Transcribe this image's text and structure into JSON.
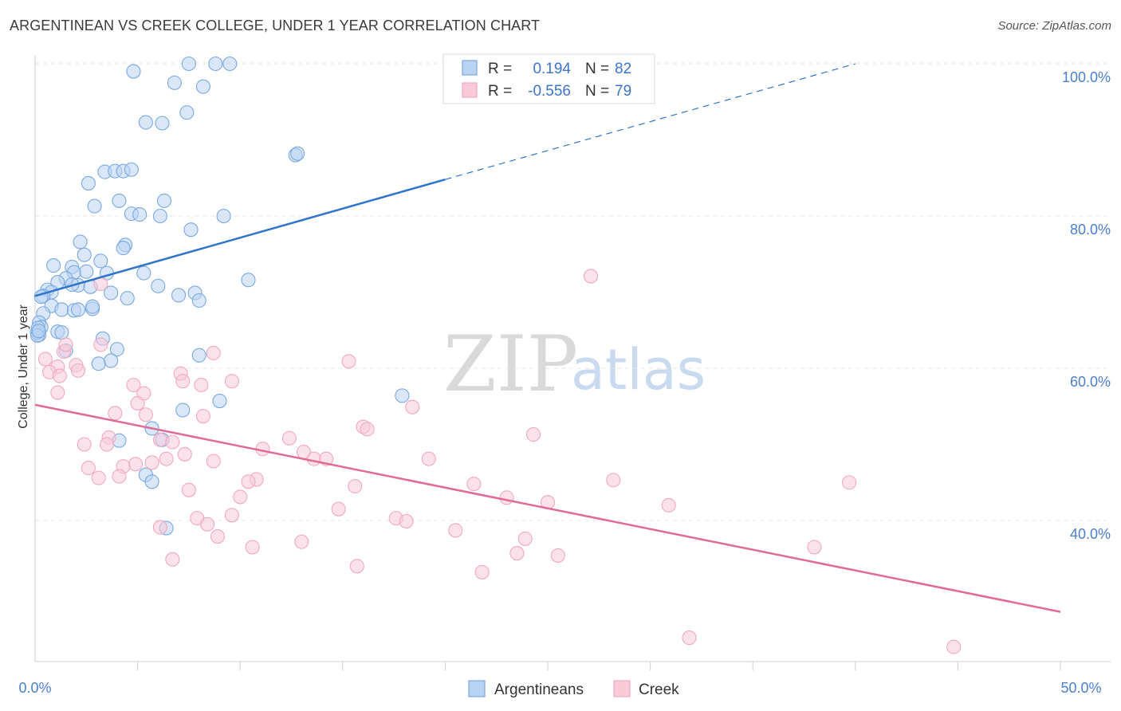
{
  "chart_data": {
    "type": "scatter",
    "title": "ARGENTINEAN VS CREEK COLLEGE, UNDER 1 YEAR CORRELATION CHART",
    "source": "Source: ZipAtlas.com",
    "xlabel": "",
    "ylabel": "College, Under 1 year",
    "xlim": [
      0,
      50
    ],
    "ylim": [
      20,
      102
    ],
    "x_tick_labels": [
      "0.0%",
      "50.0%"
    ],
    "y_ticks": [
      40,
      60,
      80,
      100
    ],
    "y_tick_labels": [
      "40.0%",
      "60.0%",
      "80.0%",
      "100.0%"
    ],
    "watermark": {
      "zip": "ZIP",
      "atlas": "atlas"
    },
    "legend_stats": [
      {
        "r_label": "R =",
        "r_value": "0.194",
        "n_label": "N =",
        "n_value": "82"
      },
      {
        "r_label": "R =",
        "r_value": "-0.556",
        "n_label": "N =",
        "n_value": "79"
      }
    ],
    "series": [
      {
        "name": "Argentineans",
        "color": "#7aa8e0",
        "fill": "#b9d3f2",
        "trend_color": "#2f74cc",
        "trend": {
          "x0": 0,
          "y0": 69.5,
          "x1": 20,
          "y1": 84.8,
          "dash_x1": 40,
          "dash_y1": 100
        },
        "points": [
          [
            4.8,
            99
          ],
          [
            7.5,
            100
          ],
          [
            8.8,
            100
          ],
          [
            9.5,
            100
          ],
          [
            6.8,
            97.5
          ],
          [
            8.2,
            97
          ],
          [
            5.4,
            92.3
          ],
          [
            6.2,
            92.2
          ],
          [
            7.4,
            93.6
          ],
          [
            12.7,
            88
          ],
          [
            12.8,
            88.2
          ],
          [
            2.6,
            84.3
          ],
          [
            3.4,
            85.8
          ],
          [
            3.9,
            85.9
          ],
          [
            4.3,
            85.9
          ],
          [
            4.7,
            86.1
          ],
          [
            2.9,
            81.3
          ],
          [
            4.1,
            82
          ],
          [
            6.3,
            82
          ],
          [
            4.7,
            80.3
          ],
          [
            5.1,
            80.2
          ],
          [
            6.1,
            80
          ],
          [
            9.2,
            80
          ],
          [
            7.6,
            78.2
          ],
          [
            2.2,
            76.6
          ],
          [
            4.4,
            76.2
          ],
          [
            4.3,
            75.8
          ],
          [
            2.4,
            74.9
          ],
          [
            0.9,
            73.5
          ],
          [
            1.8,
            73.3
          ],
          [
            3.2,
            74.1
          ],
          [
            1.9,
            72.6
          ],
          [
            2.5,
            72.7
          ],
          [
            3.5,
            72.5
          ],
          [
            5.3,
            72.5
          ],
          [
            1.5,
            71.8
          ],
          [
            1.1,
            71.3
          ],
          [
            2.1,
            70.9
          ],
          [
            1.8,
            71
          ],
          [
            2.7,
            70.7
          ],
          [
            6.0,
            70.8
          ],
          [
            10.4,
            71.6
          ],
          [
            0.6,
            70.3
          ],
          [
            0.8,
            70
          ],
          [
            0.4,
            69.5
          ],
          [
            0.3,
            69.4
          ],
          [
            3.7,
            69.9
          ],
          [
            7.0,
            69.6
          ],
          [
            7.8,
            69.9
          ],
          [
            4.5,
            69.2
          ],
          [
            8.0,
            68.9
          ],
          [
            0.8,
            68.2
          ],
          [
            1.3,
            67.7
          ],
          [
            1.9,
            67.6
          ],
          [
            2.1,
            67.7
          ],
          [
            2.8,
            67.8
          ],
          [
            2.8,
            68.1
          ],
          [
            0.4,
            67.2
          ],
          [
            0.2,
            66
          ],
          [
            0.3,
            65.4
          ],
          [
            1.1,
            64.8
          ],
          [
            1.3,
            64.7
          ],
          [
            3.3,
            63.9
          ],
          [
            0.2,
            64.4
          ],
          [
            1.5,
            62.3
          ],
          [
            4.0,
            62.5
          ],
          [
            8.0,
            61.7
          ],
          [
            3.1,
            60.6
          ],
          [
            3.7,
            61
          ],
          [
            7.2,
            54.5
          ],
          [
            9.0,
            55.7
          ],
          [
            17.9,
            56.4
          ],
          [
            5.7,
            52.1
          ],
          [
            6.2,
            50.6
          ],
          [
            4.1,
            50.5
          ],
          [
            5.4,
            46
          ],
          [
            5.7,
            45.1
          ],
          [
            6.4,
            39
          ],
          [
            0.1,
            64.7
          ],
          [
            0.15,
            65.3
          ],
          [
            0.12,
            64.3
          ],
          [
            0.18,
            64.9
          ]
        ]
      },
      {
        "name": "Creek",
        "color": "#f0a8c0",
        "fill": "#f8cad8",
        "trend_color": "#e06a98",
        "trend": {
          "x0": 0,
          "y0": 55.2,
          "x1": 50,
          "y1": 28
        },
        "points": [
          [
            27.1,
            72.1
          ],
          [
            3.2,
            71.1
          ],
          [
            0.5,
            61.2
          ],
          [
            1.1,
            60.2
          ],
          [
            1.4,
            62.2
          ],
          [
            1.5,
            63.1
          ],
          [
            2.0,
            60.4
          ],
          [
            2.1,
            59.7
          ],
          [
            3.2,
            63.1
          ],
          [
            0.7,
            59.5
          ],
          [
            1.2,
            59
          ],
          [
            7.1,
            59.3
          ],
          [
            8.7,
            62
          ],
          [
            9.6,
            58.3
          ],
          [
            15.3,
            60.9
          ],
          [
            7.2,
            58.3
          ],
          [
            8.1,
            57.8
          ],
          [
            4.8,
            57.8
          ],
          [
            5.3,
            56.7
          ],
          [
            1.1,
            56.8
          ],
          [
            5.0,
            55.4
          ],
          [
            18.4,
            54.9
          ],
          [
            3.9,
            54.1
          ],
          [
            5.4,
            53.9
          ],
          [
            8.2,
            53.7
          ],
          [
            16.0,
            52.3
          ],
          [
            16.2,
            52
          ],
          [
            24.3,
            51.3
          ],
          [
            12.4,
            50.8
          ],
          [
            3.6,
            50.9
          ],
          [
            6.1,
            50.6
          ],
          [
            2.4,
            50
          ],
          [
            3.5,
            50
          ],
          [
            6.7,
            50.3
          ],
          [
            11.1,
            49.4
          ],
          [
            13.1,
            49
          ],
          [
            7.3,
            48.7
          ],
          [
            13.6,
            48.1
          ],
          [
            14.2,
            48.1
          ],
          [
            19.2,
            48.1
          ],
          [
            6.4,
            48.1
          ],
          [
            5.7,
            47.6
          ],
          [
            4.9,
            47.4
          ],
          [
            8.7,
            47.8
          ],
          [
            2.6,
            46.9
          ],
          [
            4.3,
            47.1
          ],
          [
            4.1,
            45.8
          ],
          [
            3.1,
            45.6
          ],
          [
            10.8,
            45.4
          ],
          [
            10.4,
            45.1
          ],
          [
            28.2,
            45.3
          ],
          [
            39.7,
            45
          ],
          [
            15.6,
            44.5
          ],
          [
            21.4,
            44.8
          ],
          [
            7.5,
            44
          ],
          [
            10.0,
            43.1
          ],
          [
            23.0,
            43
          ],
          [
            25.0,
            42.4
          ],
          [
            30.9,
            42
          ],
          [
            14.8,
            41.5
          ],
          [
            9.6,
            40.7
          ],
          [
            17.6,
            40.3
          ],
          [
            18.1,
            39.9
          ],
          [
            7.9,
            40.3
          ],
          [
            8.4,
            39.5
          ],
          [
            6.1,
            39.1
          ],
          [
            20.5,
            38.7
          ],
          [
            8.9,
            37.9
          ],
          [
            13.0,
            37.2
          ],
          [
            10.6,
            36.5
          ],
          [
            23.9,
            37.6
          ],
          [
            23.5,
            35.7
          ],
          [
            25.5,
            35.4
          ],
          [
            6.7,
            34.9
          ],
          [
            15.7,
            34
          ],
          [
            21.8,
            33.2
          ],
          [
            38.0,
            36.5
          ],
          [
            31.9,
            24.6
          ],
          [
            44.8,
            23.4
          ]
        ]
      }
    ]
  }
}
